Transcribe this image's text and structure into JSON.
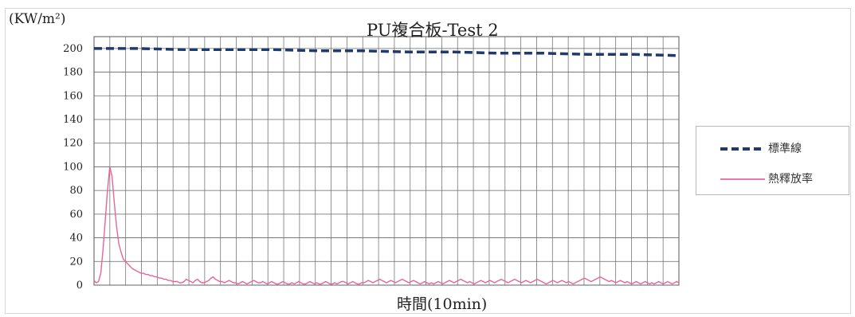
{
  "chart_data": {
    "type": "line",
    "title": "PU複合板-Test 2",
    "ylabel": "(KW/m²)",
    "xlabel": "時間(10min)",
    "ylim": [
      0,
      210
    ],
    "yticks": [
      0,
      20,
      40,
      60,
      80,
      100,
      120,
      140,
      160,
      180,
      200
    ],
    "grid": true,
    "legend_position": "right",
    "series": [
      {
        "name": "標準線",
        "color": "#1f3a6e",
        "style": "dashed",
        "values": [
          200,
          200,
          199,
          199,
          199,
          198,
          198,
          197,
          197,
          196,
          196,
          195,
          195,
          194
        ]
      },
      {
        "name": "熱釋放率",
        "color": "#e8649a",
        "style": "solid",
        "values": [
          4,
          2,
          3,
          10,
          30,
          55,
          80,
          100,
          92,
          70,
          50,
          35,
          28,
          22,
          20,
          18,
          16,
          14,
          13,
          12,
          11,
          10,
          10,
          9,
          9,
          8,
          8,
          7,
          7,
          6,
          6,
          5,
          5,
          4,
          4,
          3,
          3,
          3,
          2,
          2,
          3,
          5,
          4,
          3,
          2,
          4,
          5,
          3,
          2,
          2,
          3,
          4,
          6,
          7,
          5,
          4,
          3,
          3,
          2,
          3,
          4,
          3,
          2,
          2,
          1,
          2,
          3,
          2,
          1,
          2,
          3,
          4,
          3,
          2,
          2,
          3,
          2,
          1,
          2,
          3,
          2,
          1,
          1,
          2,
          3,
          2,
          1,
          1,
          2,
          1,
          2,
          3,
          2,
          1,
          1,
          2,
          3,
          2,
          1,
          2,
          1,
          1,
          2,
          3,
          2,
          1,
          1,
          2,
          1,
          2,
          3,
          3,
          2,
          1,
          2,
          3,
          2,
          1,
          1,
          2,
          2,
          3,
          4,
          3,
          2,
          3,
          4,
          5,
          4,
          3,
          2,
          3,
          4,
          3,
          2,
          3,
          4,
          5,
          4,
          3,
          2,
          3,
          4,
          3,
          2,
          1,
          2,
          3,
          2,
          1,
          2,
          1,
          2,
          3,
          2,
          1,
          2,
          3,
          4,
          3,
          2,
          3,
          4,
          5,
          4,
          3,
          2,
          3,
          2,
          1,
          2,
          3,
          4,
          3,
          2,
          3,
          4,
          3,
          2,
          3,
          4,
          5,
          4,
          3,
          2,
          3,
          4,
          5,
          4,
          3,
          2,
          3,
          4,
          3,
          2,
          3,
          4,
          5,
          4,
          3,
          2,
          1,
          2,
          3,
          4,
          3,
          2,
          3,
          4,
          3,
          2,
          3,
          2,
          1,
          2,
          3,
          4,
          5,
          6,
          5,
          4,
          3,
          4,
          5,
          6,
          7,
          6,
          5,
          4,
          3,
          4,
          3,
          2,
          3,
          4,
          3,
          2,
          3,
          2,
          1,
          2,
          3,
          2,
          1,
          2,
          3,
          2,
          1,
          2,
          1,
          2,
          3,
          2,
          1,
          2,
          3,
          2,
          1,
          2,
          3,
          2
        ]
      }
    ]
  }
}
